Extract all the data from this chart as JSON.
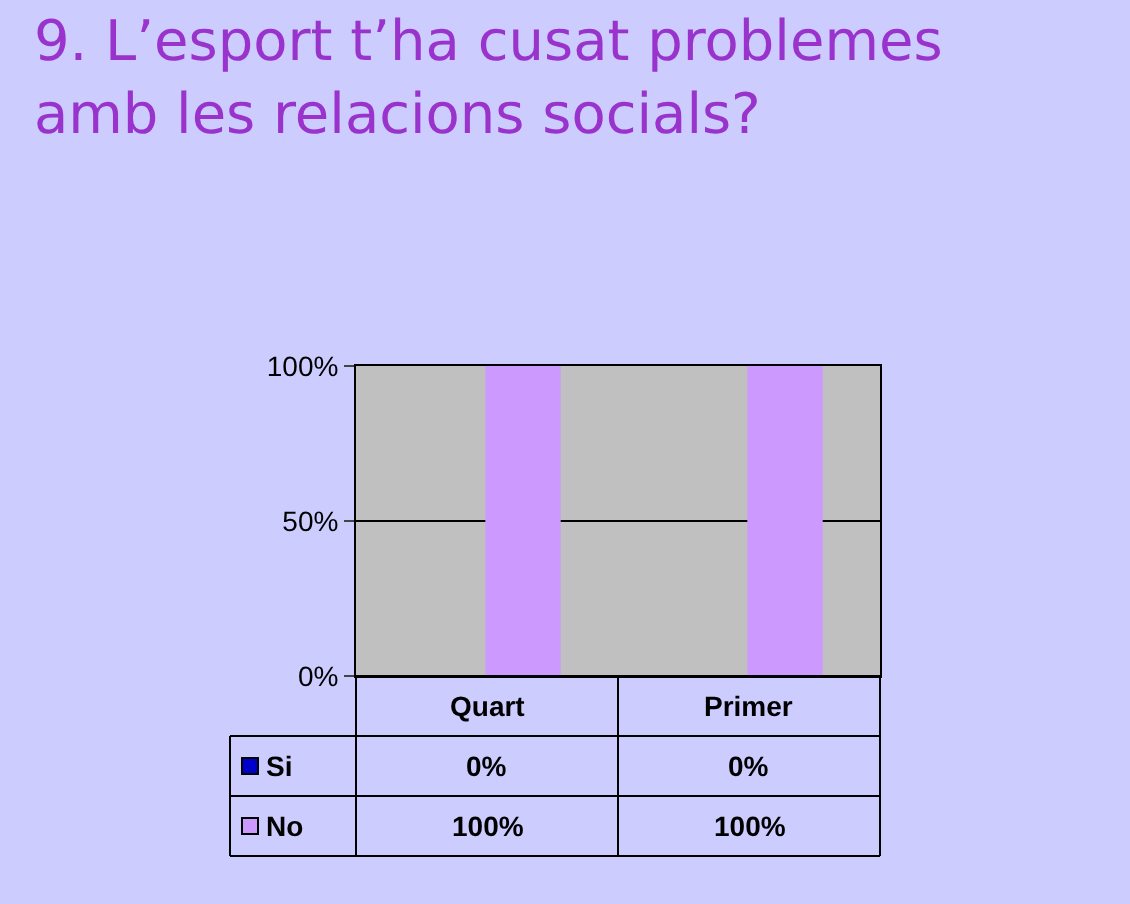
{
  "chart_data": {
    "type": "bar",
    "title": "9. L’esport t’ha cusat problemes\namb les relacions socials?",
    "categories": [
      "Quart",
      "Primer"
    ],
    "series": [
      {
        "name": "Si",
        "color": "#0000cc",
        "values": [
          0,
          0
        ],
        "value_labels": [
          "0%",
          "0%"
        ]
      },
      {
        "name": "No",
        "color": "#cc99ff",
        "values": [
          100,
          100
        ],
        "value_labels": [
          "100%",
          "100%"
        ]
      }
    ],
    "ylim": [
      0,
      100
    ],
    "yticks": [
      {
        "value": 0,
        "label": "0%"
      },
      {
        "value": 50,
        "label": "50%"
      },
      {
        "value": 100,
        "label": "100%"
      }
    ],
    "grid": "y",
    "legend": "bottom left"
  }
}
